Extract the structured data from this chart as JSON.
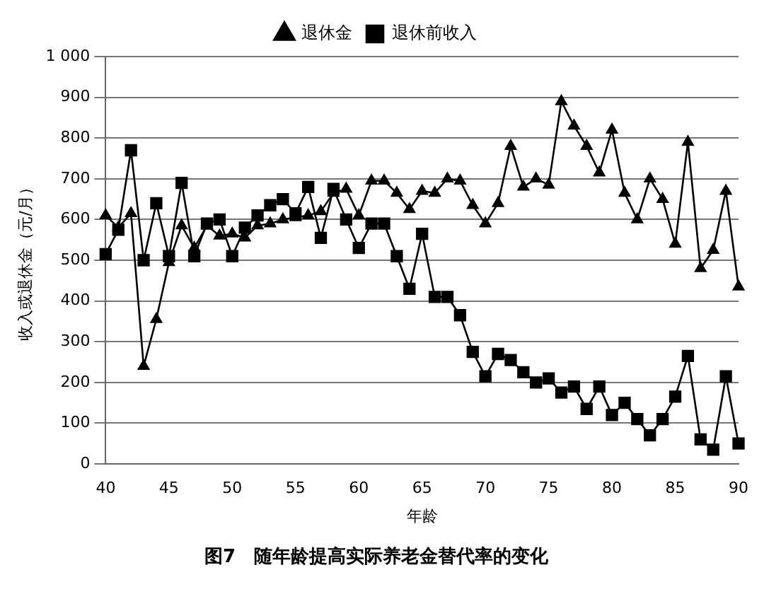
{
  "chart_data": {
    "type": "line",
    "title": "图7　随年龄提高实际养老金替代率的变化",
    "xlabel": "年龄",
    "ylabel": "收入或退休金（元/月）",
    "x": [
      40,
      41,
      42,
      43,
      44,
      45,
      46,
      47,
      48,
      49,
      50,
      51,
      52,
      53,
      54,
      55,
      56,
      57,
      58,
      59,
      60,
      61,
      62,
      63,
      64,
      65,
      66,
      67,
      68,
      69,
      70,
      71,
      72,
      73,
      74,
      75,
      76,
      77,
      78,
      79,
      80,
      81,
      82,
      83,
      84,
      85,
      86,
      87,
      88,
      89,
      90
    ],
    "series": [
      {
        "name": "退休金",
        "color": "#000000",
        "marker": "triangle",
        "values": [
          610,
          580,
          615,
          240,
          355,
          495,
          585,
          530,
          585,
          560,
          565,
          555,
          585,
          590,
          600,
          605,
          610,
          620,
          665,
          675,
          610,
          695,
          695,
          665,
          625,
          670,
          665,
          700,
          695,
          635,
          590,
          640,
          780,
          680,
          700,
          685,
          890,
          830,
          780,
          715,
          820,
          665,
          600,
          700,
          650,
          540,
          790,
          480,
          525,
          670,
          435
        ]
      },
      {
        "name": "退休前收入",
        "color": "#000000",
        "marker": "square",
        "values": [
          515,
          575,
          770,
          500,
          640,
          510,
          690,
          510,
          590,
          600,
          510,
          580,
          610,
          635,
          650,
          615,
          680,
          555,
          675,
          600,
          530,
          590,
          590,
          510,
          430,
          565,
          410,
          410,
          365,
          275,
          215,
          270,
          255,
          225,
          200,
          210,
          175,
          190,
          135,
          190,
          120,
          150,
          110,
          70,
          110,
          165,
          265,
          60,
          35,
          215,
          50
        ]
      }
    ],
    "xlim": [
      40,
      90
    ],
    "xticks": [
      40,
      45,
      50,
      55,
      60,
      65,
      70,
      75,
      80,
      85,
      90
    ],
    "ylim": [
      0,
      1000
    ],
    "yticks": [
      0,
      100,
      200,
      300,
      400,
      500,
      600,
      700,
      800,
      900,
      {
        "value": 1000,
        "label": "1 000"
      }
    ],
    "grid": "y",
    "legend": "top",
    "line_style": "solid"
  }
}
